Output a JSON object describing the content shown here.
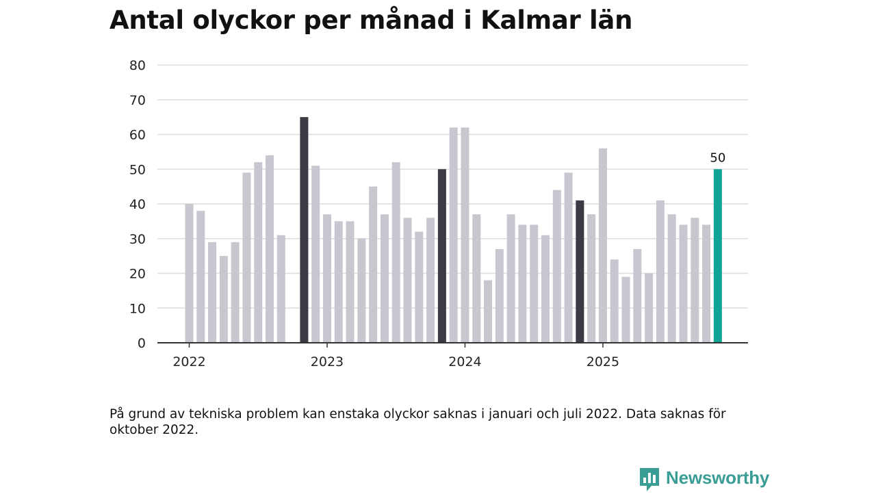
{
  "title": "Antal olyckor per månad i Kalmar län",
  "footnote": "På grund av tekniska problem kan enstaka olyckor saknas i januari och juli 2022. Data saknas för oktober 2022.",
  "brand": {
    "name": "Newsworthy",
    "color": "#3a9d95"
  },
  "colors": {
    "default_bar": "#c8c7d0",
    "november_bar": "#3b3b45",
    "latest_bar": "#12a397",
    "grid": "#dcdcdc",
    "axis": "#333333"
  },
  "chart_data": {
    "type": "bar",
    "title": "Antal olyckor per månad i Kalmar län",
    "xlabel": "",
    "ylabel": "",
    "ylim": [
      0,
      80
    ],
    "yticks": [
      0,
      10,
      20,
      30,
      40,
      50,
      60,
      70,
      80
    ],
    "grid": true,
    "year_labels": [
      {
        "label": "2022",
        "at_category": "2022-01"
      },
      {
        "label": "2023",
        "at_category": "2023-01"
      },
      {
        "label": "2024",
        "at_category": "2024-01"
      },
      {
        "label": "2025",
        "at_category": "2025-01"
      }
    ],
    "categories": [
      "2022-01",
      "2022-02",
      "2022-03",
      "2022-04",
      "2022-05",
      "2022-06",
      "2022-07",
      "2022-08",
      "2022-09",
      "2022-10",
      "2022-11",
      "2022-12",
      "2023-01",
      "2023-02",
      "2023-03",
      "2023-04",
      "2023-05",
      "2023-06",
      "2023-07",
      "2023-08",
      "2023-09",
      "2023-10",
      "2023-11",
      "2023-12",
      "2024-01",
      "2024-02",
      "2024-03",
      "2024-04",
      "2024-05",
      "2024-06",
      "2024-07",
      "2024-08",
      "2024-09",
      "2024-10",
      "2024-11",
      "2024-12",
      "2025-01",
      "2025-02",
      "2025-03",
      "2025-04",
      "2025-05",
      "2025-06",
      "2025-07",
      "2025-08",
      "2025-09",
      "2025-10",
      "2025-11"
    ],
    "values": [
      40,
      38,
      29,
      25,
      29,
      49,
      52,
      54,
      31,
      null,
      65,
      51,
      37,
      35,
      35,
      30,
      45,
      37,
      52,
      36,
      32,
      36,
      50,
      62,
      62,
      37,
      18,
      27,
      37,
      34,
      34,
      31,
      44,
      49,
      41,
      37,
      56,
      24,
      19,
      27,
      20,
      41,
      37,
      34,
      36,
      34,
      50
    ],
    "highlight": {
      "november": "dark",
      "last": "teal"
    },
    "annotations": [
      {
        "category": "2025-11",
        "text": "50"
      }
    ]
  }
}
